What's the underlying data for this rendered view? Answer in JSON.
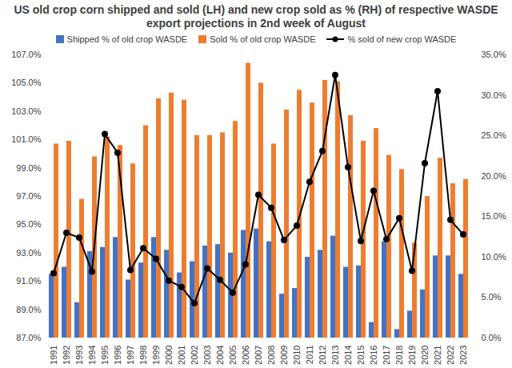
{
  "chart_data": {
    "type": "bar",
    "title": "US old crop corn shipped and sold (LH) and new crop sold as % (RH) of respective WASDE export projections in 2nd week of August",
    "categories": [
      "1991",
      "1992",
      "1993",
      "1994",
      "1995",
      "1996",
      "1997",
      "1998",
      "1999",
      "2000",
      "2001",
      "2002",
      "2003",
      "2004",
      "2005",
      "2006",
      "2007",
      "2008",
      "2009",
      "2010",
      "2011",
      "2012",
      "2013",
      "2014",
      "2015",
      "2016",
      "2017",
      "2018",
      "2019",
      "2020",
      "2021",
      "2022",
      "2023"
    ],
    "series": [
      {
        "name": "Shipped % of old crop WASDE",
        "type": "bar",
        "color": "#4472C4",
        "values": [
          91.5,
          92.0,
          89.5,
          93.1,
          93.4,
          94.1,
          91.1,
          92.3,
          94.1,
          93.2,
          91.6,
          92.4,
          93.5,
          93.6,
          93.0,
          94.6,
          94.7,
          93.8,
          90.1,
          90.5,
          92.7,
          93.2,
          94.2,
          92.0,
          92.1,
          88.1,
          93.8,
          87.6,
          88.9,
          90.4,
          92.8,
          92.8,
          91.5
        ]
      },
      {
        "name": "Sold % of old crop WASDE",
        "type": "bar",
        "color": "#ED7D31",
        "values": [
          100.7,
          100.9,
          96.8,
          99.8,
          101.2,
          100.6,
          99.3,
          102.0,
          103.9,
          104.3,
          103.8,
          101.3,
          101.3,
          101.5,
          102.3,
          106.4,
          105.0,
          100.7,
          103.1,
          104.5,
          103.6,
          105.2,
          105.1,
          102.7,
          100.9,
          101.8,
          99.9,
          98.9,
          93.7,
          97.0,
          99.7,
          97.9,
          98.2
        ]
      },
      {
        "name": "% sold of new crop WASDE",
        "type": "line",
        "axis": "y2",
        "color": "#000000",
        "marker": "circle",
        "values": [
          8.0,
          13.0,
          12.4,
          8.2,
          25.2,
          22.9,
          8.4,
          11.1,
          9.8,
          7.1,
          6.3,
          4.3,
          8.6,
          7.2,
          5.6,
          9.1,
          17.7,
          16.1,
          12.1,
          13.9,
          19.3,
          23.1,
          32.5,
          21.1,
          12.0,
          18.2,
          12.2,
          14.8,
          8.3,
          21.6,
          30.5,
          14.6,
          12.8
        ]
      }
    ],
    "ylim": [
      87,
      107
    ],
    "yticks": [
      {
        "value": 87,
        "label": "87.0%"
      },
      {
        "value": 89,
        "label": "89.0%"
      },
      {
        "value": 91,
        "label": "91.0%"
      },
      {
        "value": 93,
        "label": "93.0%"
      },
      {
        "value": 95,
        "label": "95.0%"
      },
      {
        "value": 97,
        "label": "97.0%"
      },
      {
        "value": 99,
        "label": "99.0%"
      },
      {
        "value": 101,
        "label": "101.0%"
      },
      {
        "value": 103,
        "label": "103.0%"
      },
      {
        "value": 105,
        "label": "105.0%"
      },
      {
        "value": 107,
        "label": "107.0%"
      }
    ],
    "y2lim": [
      0,
      35
    ],
    "y2ticks": [
      {
        "value": 0,
        "label": "0.0%"
      },
      {
        "value": 5,
        "label": "5.0%"
      },
      {
        "value": 10,
        "label": "10.0%"
      },
      {
        "value": 15,
        "label": "15.0%"
      },
      {
        "value": 20,
        "label": "20.0%"
      },
      {
        "value": 25,
        "label": "25.0%"
      },
      {
        "value": 30,
        "label": "30.0%"
      },
      {
        "value": 35,
        "label": "35.0%"
      }
    ],
    "grid": false,
    "legend": "top"
  }
}
